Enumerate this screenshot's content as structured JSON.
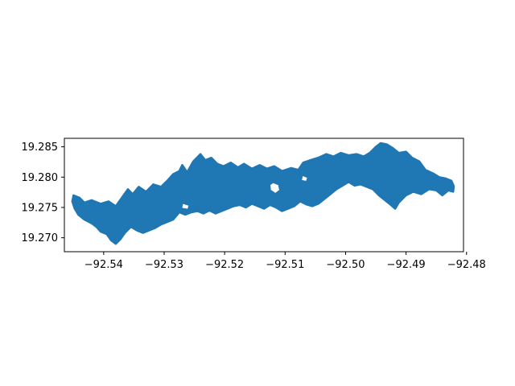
{
  "chart_data": {
    "type": "area",
    "title": "",
    "xlabel": "",
    "ylabel": "",
    "xlim": [
      -92.5465,
      -92.4805
    ],
    "ylim": [
      19.2677,
      19.2864
    ],
    "x_ticks": [
      -92.54,
      -92.53,
      -92.52,
      -92.51,
      -92.5,
      -92.49,
      -92.48
    ],
    "x_tick_labels": [
      "−92.54",
      "−92.53",
      "−92.52",
      "−92.51",
      "−92.50",
      "−92.49",
      "−92.48"
    ],
    "y_ticks": [
      19.27,
      19.275,
      19.28,
      19.285
    ],
    "y_tick_labels": [
      "19.270",
      "19.275",
      "19.280",
      "19.285"
    ],
    "grid": false,
    "series": [
      {
        "fill": "#1f77b4",
        "polygon": [
          [
            -92.545,
            19.277
          ],
          [
            -92.544,
            19.2766
          ],
          [
            -92.5432,
            19.2758
          ],
          [
            -92.542,
            19.2762
          ],
          [
            -92.5405,
            19.2756
          ],
          [
            -92.5392,
            19.276
          ],
          [
            -92.538,
            19.2752
          ],
          [
            -92.537,
            19.2766
          ],
          [
            -92.536,
            19.278
          ],
          [
            -92.5352,
            19.2772
          ],
          [
            -92.5342,
            19.2784
          ],
          [
            -92.533,
            19.2776
          ],
          [
            -92.5318,
            19.2788
          ],
          [
            -92.5305,
            19.2784
          ],
          [
            -92.5295,
            19.2794
          ],
          [
            -92.5285,
            19.2805
          ],
          [
            -92.5275,
            19.281
          ],
          [
            -92.527,
            19.282
          ],
          [
            -92.5262,
            19.2808
          ],
          [
            -92.5252,
            19.2826
          ],
          [
            -92.524,
            19.2838
          ],
          [
            -92.5232,
            19.2828
          ],
          [
            -92.5222,
            19.2832
          ],
          [
            -92.5212,
            19.2822
          ],
          [
            -92.5202,
            19.2818
          ],
          [
            -92.519,
            19.2824
          ],
          [
            -92.5178,
            19.2816
          ],
          [
            -92.5168,
            19.2822
          ],
          [
            -92.5155,
            19.2814
          ],
          [
            -92.5142,
            19.282
          ],
          [
            -92.513,
            19.2814
          ],
          [
            -92.5118,
            19.2818
          ],
          [
            -92.5105,
            19.281
          ],
          [
            -92.509,
            19.2815
          ],
          [
            -92.5078,
            19.2812
          ],
          [
            -92.507,
            19.2824
          ],
          [
            -92.5058,
            19.2828
          ],
          [
            -92.5045,
            19.2832
          ],
          [
            -92.5032,
            19.2838
          ],
          [
            -92.502,
            19.2834
          ],
          [
            -92.5008,
            19.284
          ],
          [
            -92.4995,
            19.2836
          ],
          [
            -92.4982,
            19.2838
          ],
          [
            -92.497,
            19.2834
          ],
          [
            -92.496,
            19.284
          ],
          [
            -92.495,
            19.285
          ],
          [
            -92.4942,
            19.2856
          ],
          [
            -92.4932,
            19.2854
          ],
          [
            -92.4922,
            19.2848
          ],
          [
            -92.4912,
            19.284
          ],
          [
            -92.49,
            19.2842
          ],
          [
            -92.489,
            19.2832
          ],
          [
            -92.4878,
            19.2826
          ],
          [
            -92.4868,
            19.2812
          ],
          [
            -92.4855,
            19.2806
          ],
          [
            -92.4845,
            19.28
          ],
          [
            -92.4835,
            19.2798
          ],
          [
            -92.4825,
            19.2794
          ],
          [
            -92.4821,
            19.2785
          ],
          [
            -92.4822,
            19.2776
          ],
          [
            -92.483,
            19.2778
          ],
          [
            -92.484,
            19.277
          ],
          [
            -92.485,
            19.2778
          ],
          [
            -92.4862,
            19.278
          ],
          [
            -92.4875,
            19.2772
          ],
          [
            -92.4888,
            19.2776
          ],
          [
            -92.49,
            19.277
          ],
          [
            -92.4912,
            19.2758
          ],
          [
            -92.4918,
            19.2748
          ],
          [
            -92.4925,
            19.2754
          ],
          [
            -92.4935,
            19.2762
          ],
          [
            -92.4945,
            19.277
          ],
          [
            -92.4955,
            19.278
          ],
          [
            -92.4965,
            19.2784
          ],
          [
            -92.4975,
            19.2788
          ],
          [
            -92.4985,
            19.2786
          ],
          [
            -92.4995,
            19.2792
          ],
          [
            -92.5005,
            19.2786
          ],
          [
            -92.5015,
            19.278
          ],
          [
            -92.5025,
            19.2772
          ],
          [
            -92.5035,
            19.2764
          ],
          [
            -92.5045,
            19.2756
          ],
          [
            -92.5055,
            19.2752
          ],
          [
            -92.5065,
            19.2755
          ],
          [
            -92.5075,
            19.276
          ],
          [
            -92.5085,
            19.2752
          ],
          [
            -92.5095,
            19.2748
          ],
          [
            -92.5105,
            19.2744
          ],
          [
            -92.5115,
            19.275
          ],
          [
            -92.5125,
            19.2754
          ],
          [
            -92.5135,
            19.2748
          ],
          [
            -92.5145,
            19.2752
          ],
          [
            -92.5155,
            19.2756
          ],
          [
            -92.5165,
            19.275
          ],
          [
            -92.5175,
            19.2754
          ],
          [
            -92.5185,
            19.2752
          ],
          [
            -92.5195,
            19.2748
          ],
          [
            -92.5205,
            19.2744
          ],
          [
            -92.5215,
            19.274
          ],
          [
            -92.5225,
            19.2745
          ],
          [
            -92.5235,
            19.274
          ],
          [
            -92.5245,
            19.2744
          ],
          [
            -92.5255,
            19.2742
          ],
          [
            -92.5265,
            19.2738
          ],
          [
            -92.5275,
            19.2742
          ],
          [
            -92.5285,
            19.273
          ],
          [
            -92.5295,
            19.2726
          ],
          [
            -92.5305,
            19.2722
          ],
          [
            -92.5315,
            19.2716
          ],
          [
            -92.5325,
            19.2712
          ],
          [
            -92.5335,
            19.2708
          ],
          [
            -92.5345,
            19.2712
          ],
          [
            -92.5355,
            19.2718
          ],
          [
            -92.5365,
            19.2708
          ],
          [
            -92.5372,
            19.2698
          ],
          [
            -92.538,
            19.269
          ],
          [
            -92.5388,
            19.2696
          ],
          [
            -92.5395,
            19.2706
          ],
          [
            -92.5405,
            19.271
          ],
          [
            -92.5412,
            19.2718
          ],
          [
            -92.542,
            19.2724
          ],
          [
            -92.5432,
            19.273
          ],
          [
            -92.5442,
            19.2738
          ],
          [
            -92.5448,
            19.2748
          ],
          [
            -92.5452,
            19.276
          ]
        ],
        "holes": [
          [
            [
              -92.512,
              19.2792
            ],
            [
              -92.511,
              19.2788
            ],
            [
              -92.5108,
              19.2778
            ],
            [
              -92.5116,
              19.2772
            ],
            [
              -92.5125,
              19.2778
            ],
            [
              -92.5126,
              19.2788
            ]
          ],
          [
            [
              -92.5072,
              19.2804
            ],
            [
              -92.5062,
              19.28
            ],
            [
              -92.5064,
              19.2792
            ],
            [
              -92.5074,
              19.2794
            ]
          ],
          [
            [
              -92.527,
              19.2758
            ],
            [
              -92.5258,
              19.2754
            ],
            [
              -92.526,
              19.2746
            ],
            [
              -92.5272,
              19.2748
            ]
          ]
        ]
      }
    ]
  }
}
